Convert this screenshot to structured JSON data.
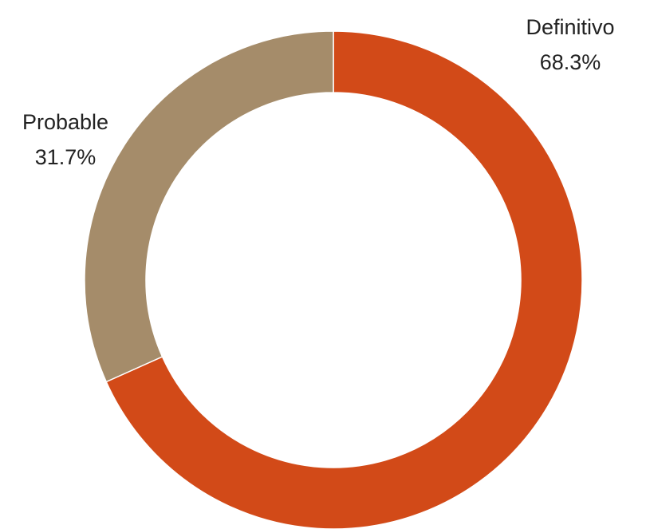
{
  "chart_data": {
    "type": "pie",
    "variant": "donut",
    "title": "",
    "slices": [
      {
        "label": "Definitivo",
        "value": 68.3,
        "value_label": "68.3%",
        "color": "#D24A18"
      },
      {
        "label": "Probable",
        "value": 31.7,
        "value_label": "31.7%",
        "color": "#A58C6A"
      }
    ],
    "legend": "none",
    "start_angle": "12 o'clock, clockwise"
  }
}
